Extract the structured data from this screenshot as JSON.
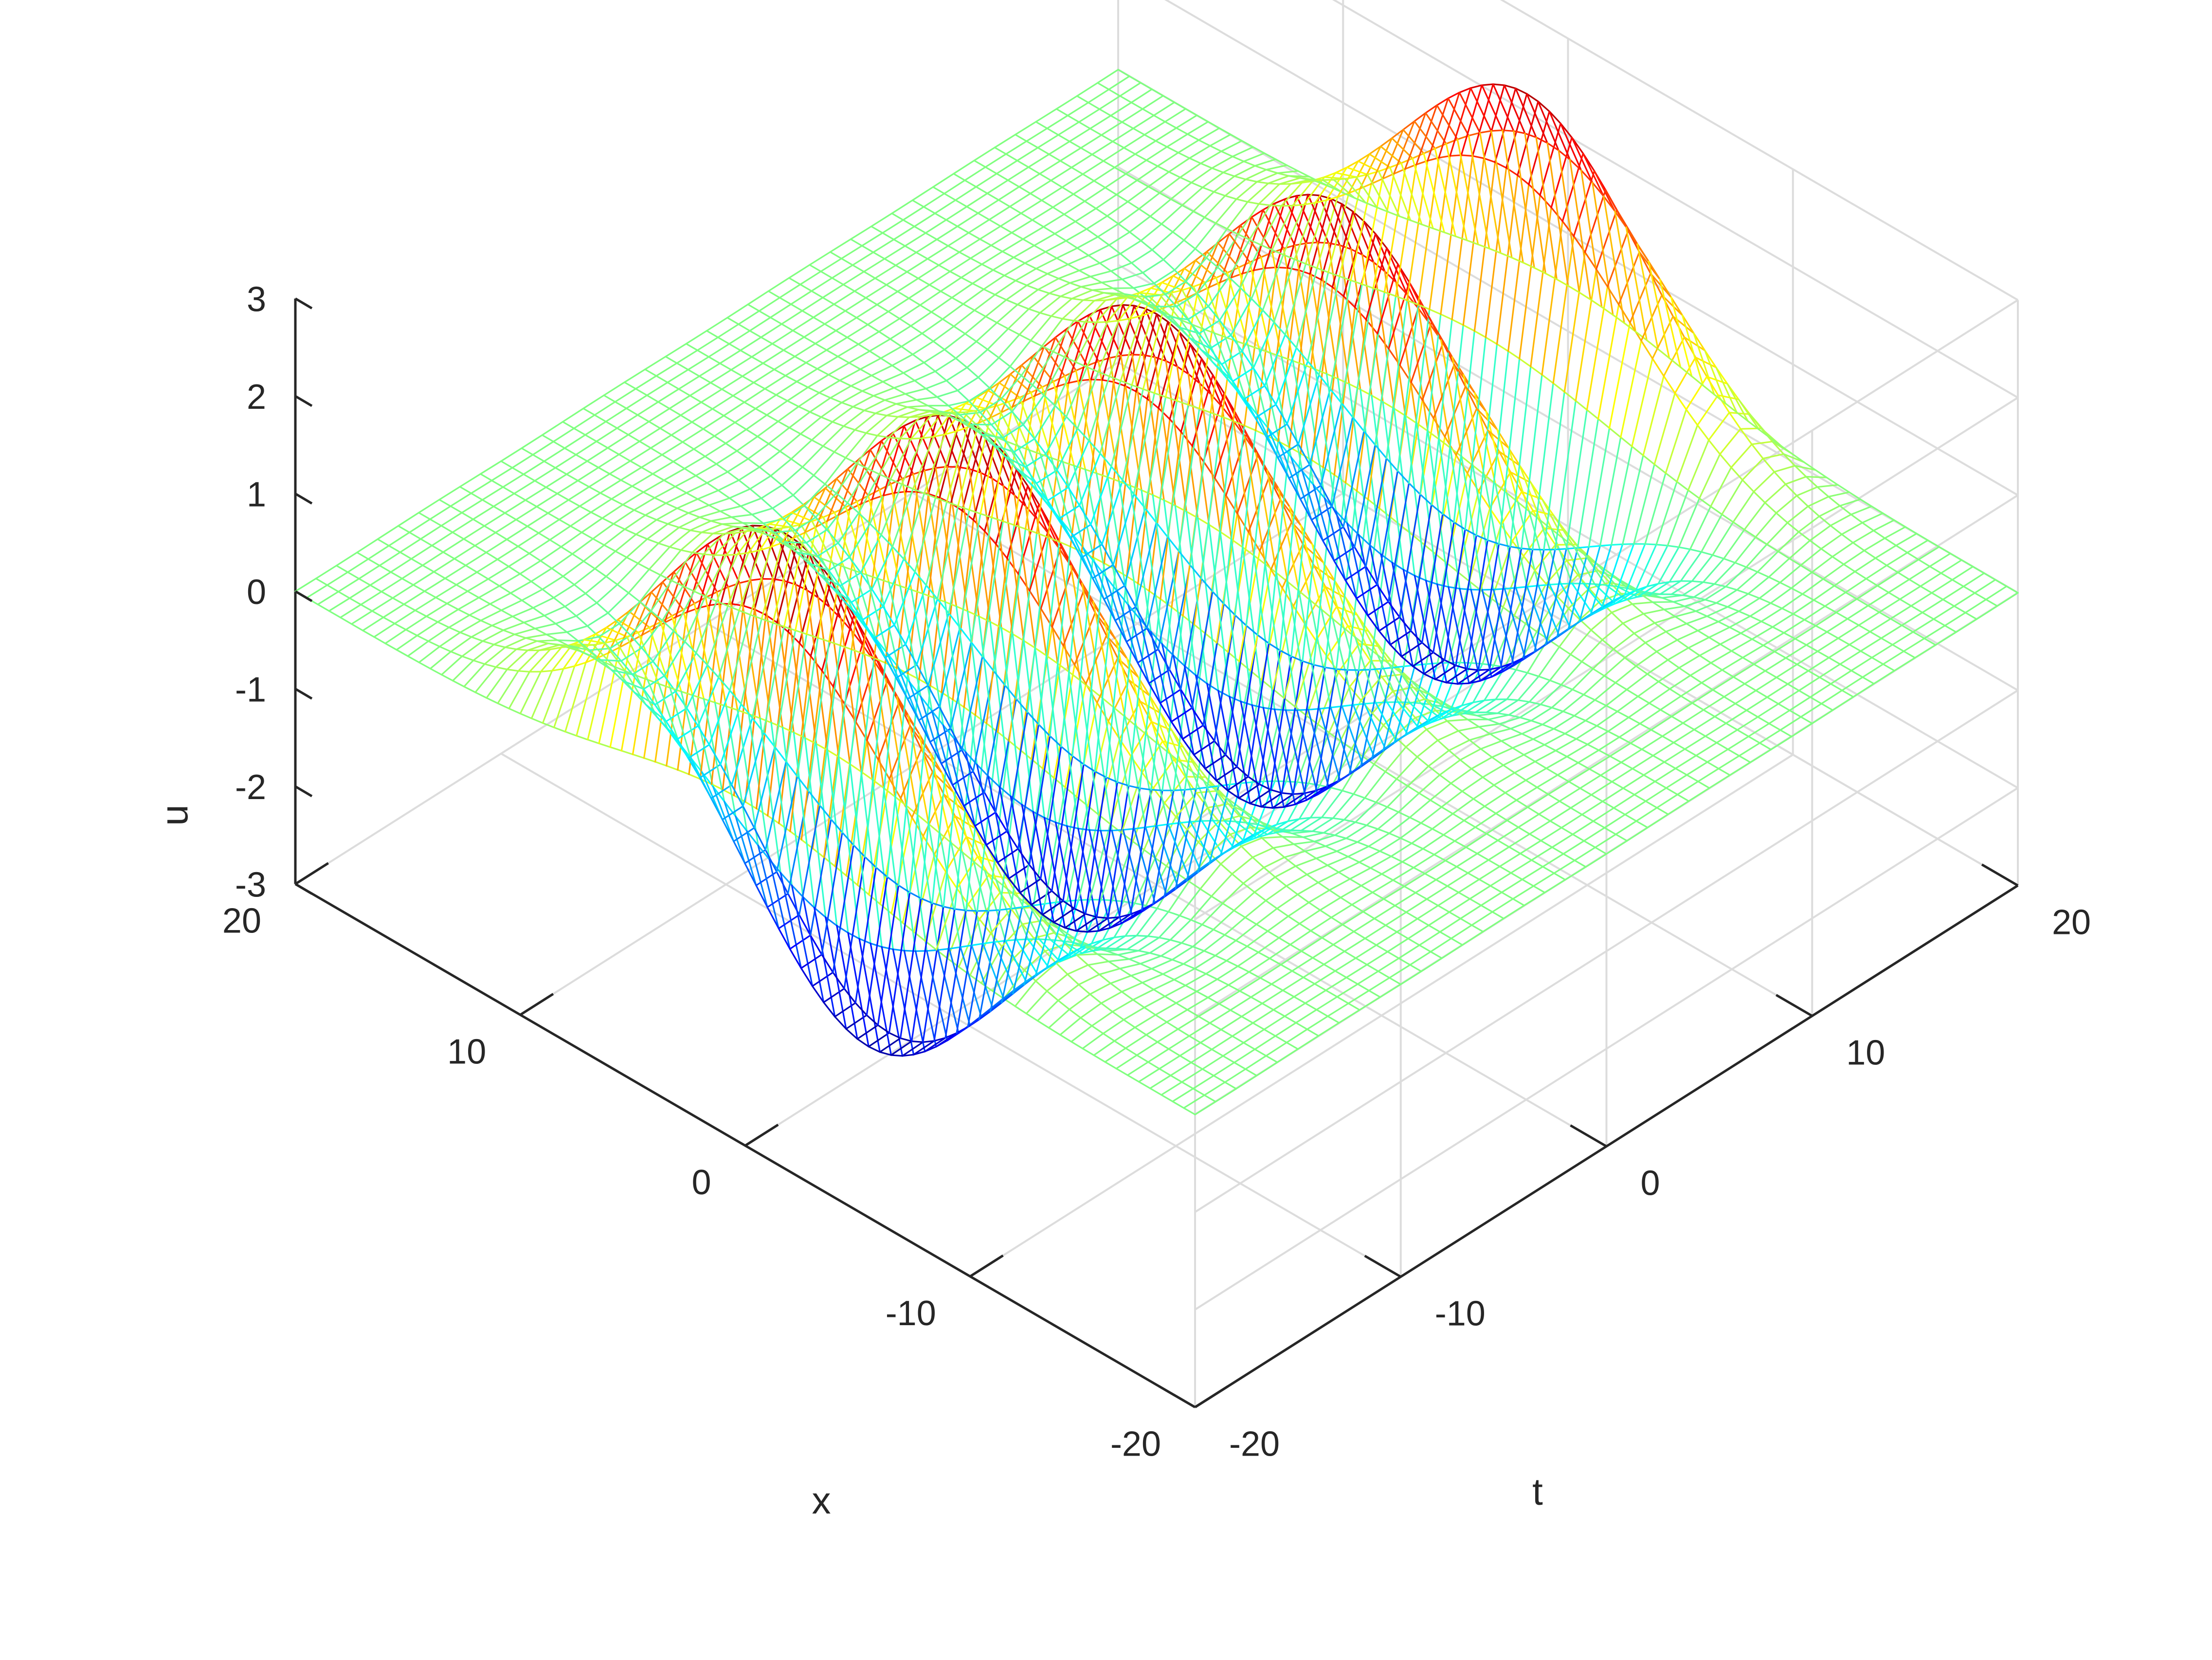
{
  "chart_data": {
    "type": "surface-mesh-3d",
    "title": "",
    "xlabel": "x",
    "ylabel": "t",
    "zlabel": "u",
    "xlim": [
      -20,
      20
    ],
    "ylim": [
      -20,
      20
    ],
    "zlim": [
      -3,
      3
    ],
    "x_ticks": [
      "-20",
      "-10",
      "0",
      "10",
      "20"
    ],
    "y_ticks": [
      "-20",
      "-10",
      "0",
      "10",
      "20"
    ],
    "z_ticks": [
      "-3",
      "-2",
      "-1",
      "0",
      "1",
      "2",
      "3"
    ],
    "grid": true,
    "box": "back planes",
    "colormap": "jet",
    "mesh": {
      "x_samples": 81,
      "t_samples": 41,
      "x_step": 0.5,
      "t_step": 1
    },
    "periodic_wave": {
      "description_of_values": "u(x,t) along the ridge line x = 0",
      "peaks": [
        {
          "t": -18,
          "u": 3.0
        },
        {
          "t": -9,
          "u": 2.9
        },
        {
          "t": 0,
          "u": 2.8
        },
        {
          "t": 9,
          "u": 2.8
        },
        {
          "t": 18,
          "u": 2.8
        }
      ],
      "troughs": [
        {
          "t": -20,
          "u": -1.9
        },
        {
          "t": 20,
          "u": -2.2
        }
      ],
      "period_t": 9,
      "flat_level_far_field": 0.0
    }
  }
}
